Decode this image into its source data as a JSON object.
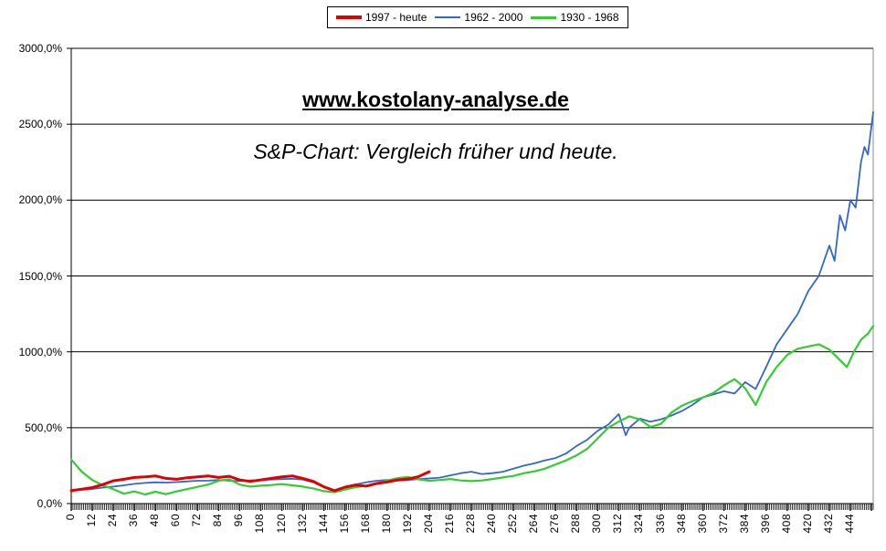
{
  "title": "www.kostolany-analyse.de",
  "subtitle": "S&P-Chart: Vergleich früher und heute.",
  "chart_data": {
    "type": "line",
    "title": "www.kostolany-analyse.de",
    "subtitle": "S&P-Chart: Vergleich früher und heute.",
    "xlabel": "",
    "ylabel": "",
    "xlim": [
      0,
      457
    ],
    "ylim": [
      0,
      3000
    ],
    "grid": "horizontal",
    "legend_position": "top-center",
    "x_tick_step": 12,
    "x_tick_labels": [
      "0",
      "12",
      "24",
      "36",
      "48",
      "60",
      "72",
      "84",
      "96",
      "108",
      "120",
      "132",
      "144",
      "156",
      "168",
      "180",
      "192",
      "204",
      "216",
      "228",
      "240",
      "252",
      "264",
      "276",
      "288",
      "300",
      "312",
      "324",
      "336",
      "348",
      "360",
      "372",
      "384",
      "396",
      "408",
      "420",
      "432",
      "444"
    ],
    "y_tick_labels": [
      "0,0%",
      "500,0%",
      "1000,0%",
      "1500,0%",
      "2000,0%",
      "2500,0%",
      "3000,0%"
    ],
    "series": [
      {
        "name": "1997 - heute",
        "color": "#e00000",
        "points": [
          [
            0,
            85
          ],
          [
            6,
            95
          ],
          [
            12,
            105
          ],
          [
            18,
            125
          ],
          [
            24,
            150
          ],
          [
            30,
            160
          ],
          [
            36,
            172
          ],
          [
            42,
            176
          ],
          [
            48,
            182
          ],
          [
            54,
            166
          ],
          [
            60,
            160
          ],
          [
            66,
            170
          ],
          [
            72,
            176
          ],
          [
            78,
            182
          ],
          [
            84,
            172
          ],
          [
            90,
            180
          ],
          [
            96,
            156
          ],
          [
            102,
            146
          ],
          [
            108,
            156
          ],
          [
            114,
            166
          ],
          [
            120,
            176
          ],
          [
            126,
            182
          ],
          [
            132,
            166
          ],
          [
            138,
            146
          ],
          [
            144,
            110
          ],
          [
            150,
            85
          ],
          [
            156,
            108
          ],
          [
            162,
            122
          ],
          [
            168,
            115
          ],
          [
            174,
            132
          ],
          [
            180,
            142
          ],
          [
            186,
            156
          ],
          [
            192,
            162
          ],
          [
            198,
            178
          ],
          [
            204,
            210
          ]
        ]
      },
      {
        "name": "1962 - 2000",
        "color": "#3366cc",
        "points": [
          [
            0,
            85
          ],
          [
            6,
            90
          ],
          [
            12,
            96
          ],
          [
            18,
            105
          ],
          [
            24,
            112
          ],
          [
            30,
            120
          ],
          [
            36,
            130
          ],
          [
            42,
            136
          ],
          [
            48,
            140
          ],
          [
            54,
            138
          ],
          [
            60,
            141
          ],
          [
            66,
            146
          ],
          [
            72,
            150
          ],
          [
            78,
            151
          ],
          [
            84,
            155
          ],
          [
            90,
            151
          ],
          [
            96,
            148
          ],
          [
            102,
            152
          ],
          [
            108,
            156
          ],
          [
            114,
            158
          ],
          [
            120,
            161
          ],
          [
            126,
            163
          ],
          [
            132,
            158
          ],
          [
            138,
            140
          ],
          [
            144,
            108
          ],
          [
            150,
            80
          ],
          [
            156,
            108
          ],
          [
            162,
            126
          ],
          [
            168,
            140
          ],
          [
            174,
            150
          ],
          [
            180,
            155
          ],
          [
            186,
            151
          ],
          [
            192,
            156
          ],
          [
            198,
            161
          ],
          [
            204,
            166
          ],
          [
            210,
            171
          ],
          [
            216,
            186
          ],
          [
            222,
            200
          ],
          [
            228,
            210
          ],
          [
            234,
            195
          ],
          [
            240,
            200
          ],
          [
            246,
            210
          ],
          [
            252,
            230
          ],
          [
            258,
            250
          ],
          [
            264,
            265
          ],
          [
            270,
            285
          ],
          [
            276,
            300
          ],
          [
            282,
            330
          ],
          [
            288,
            380
          ],
          [
            294,
            420
          ],
          [
            300,
            480
          ],
          [
            306,
            520
          ],
          [
            312,
            590
          ],
          [
            316,
            450
          ],
          [
            318,
            500
          ],
          [
            324,
            560
          ],
          [
            330,
            540
          ],
          [
            336,
            555
          ],
          [
            342,
            580
          ],
          [
            348,
            610
          ],
          [
            354,
            650
          ],
          [
            360,
            700
          ],
          [
            366,
            720
          ],
          [
            372,
            740
          ],
          [
            378,
            725
          ],
          [
            384,
            800
          ],
          [
            390,
            755
          ],
          [
            396,
            900
          ],
          [
            402,
            1050
          ],
          [
            408,
            1150
          ],
          [
            414,
            1250
          ],
          [
            420,
            1400
          ],
          [
            426,
            1500
          ],
          [
            432,
            1700
          ],
          [
            435,
            1600
          ],
          [
            438,
            1900
          ],
          [
            441,
            1800
          ],
          [
            444,
            2000
          ],
          [
            447,
            1950
          ],
          [
            450,
            2250
          ],
          [
            452,
            2350
          ],
          [
            454,
            2300
          ],
          [
            457,
            2580
          ]
        ]
      },
      {
        "name": "1930 - 1968",
        "color": "#33cc33",
        "points": [
          [
            0,
            290
          ],
          [
            3,
            250
          ],
          [
            6,
            210
          ],
          [
            12,
            155
          ],
          [
            18,
            120
          ],
          [
            24,
            95
          ],
          [
            30,
            65
          ],
          [
            36,
            80
          ],
          [
            42,
            60
          ],
          [
            48,
            78
          ],
          [
            54,
            62
          ],
          [
            60,
            80
          ],
          [
            66,
            95
          ],
          [
            72,
            110
          ],
          [
            78,
            125
          ],
          [
            84,
            150
          ],
          [
            90,
            160
          ],
          [
            96,
            125
          ],
          [
            102,
            112
          ],
          [
            108,
            118
          ],
          [
            114,
            122
          ],
          [
            120,
            128
          ],
          [
            126,
            120
          ],
          [
            132,
            112
          ],
          [
            138,
            100
          ],
          [
            144,
            82
          ],
          [
            150,
            75
          ],
          [
            156,
            92
          ],
          [
            162,
            108
          ],
          [
            168,
            118
          ],
          [
            174,
            132
          ],
          [
            180,
            152
          ],
          [
            186,
            168
          ],
          [
            192,
            175
          ],
          [
            198,
            160
          ],
          [
            204,
            150
          ],
          [
            210,
            155
          ],
          [
            216,
            162
          ],
          [
            222,
            152
          ],
          [
            228,
            148
          ],
          [
            234,
            152
          ],
          [
            240,
            162
          ],
          [
            246,
            172
          ],
          [
            252,
            182
          ],
          [
            258,
            200
          ],
          [
            264,
            212
          ],
          [
            270,
            230
          ],
          [
            276,
            258
          ],
          [
            282,
            285
          ],
          [
            288,
            318
          ],
          [
            294,
            360
          ],
          [
            300,
            430
          ],
          [
            306,
            500
          ],
          [
            312,
            540
          ],
          [
            318,
            575
          ],
          [
            324,
            555
          ],
          [
            330,
            505
          ],
          [
            336,
            525
          ],
          [
            342,
            600
          ],
          [
            348,
            645
          ],
          [
            354,
            675
          ],
          [
            360,
            700
          ],
          [
            366,
            730
          ],
          [
            372,
            780
          ],
          [
            378,
            820
          ],
          [
            384,
            760
          ],
          [
            390,
            650
          ],
          [
            396,
            800
          ],
          [
            402,
            900
          ],
          [
            408,
            980
          ],
          [
            414,
            1020
          ],
          [
            420,
            1035
          ],
          [
            426,
            1050
          ],
          [
            432,
            1015
          ],
          [
            438,
            945
          ],
          [
            442,
            900
          ],
          [
            446,
            1000
          ],
          [
            450,
            1080
          ],
          [
            454,
            1120
          ],
          [
            457,
            1170
          ]
        ]
      }
    ]
  }
}
